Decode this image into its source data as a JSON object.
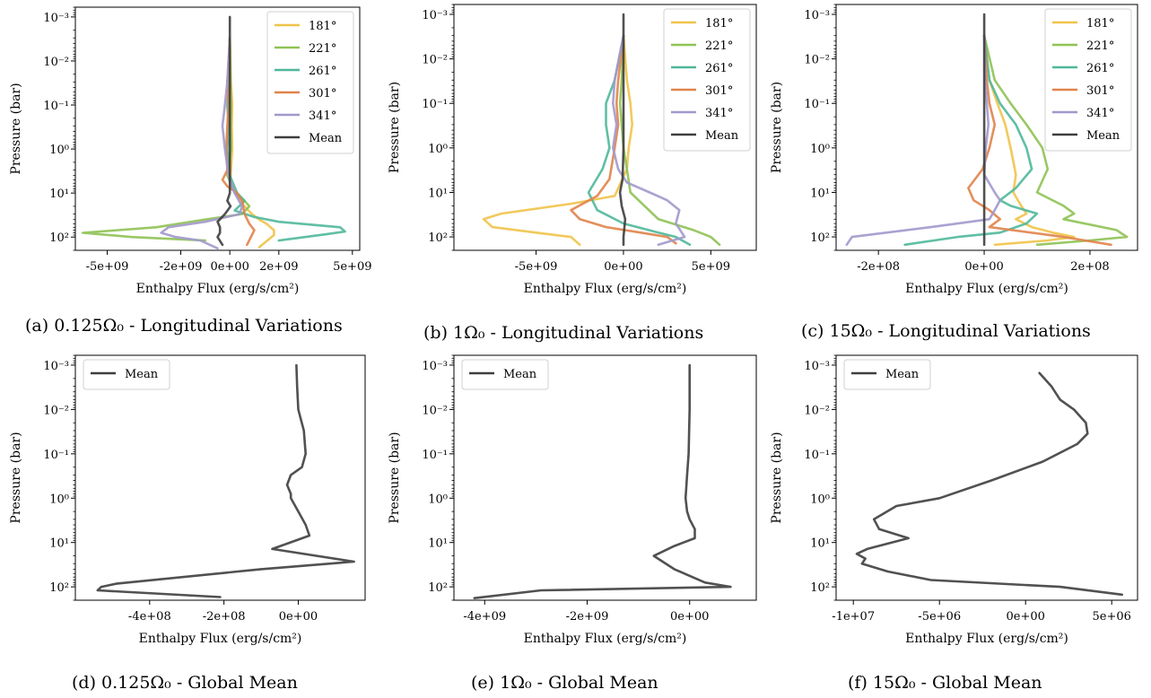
{
  "chart_data": [
    {
      "type": "line",
      "caption": "(a) 0.125Ω₀ - Longitudinal Variations",
      "xlabel": "Enthalpy Flux (erg/s/cm²)",
      "ylabel": "Pressure (bar)",
      "yscale": "log",
      "yinvert": true,
      "ylim": [
        0.0006,
        200
      ],
      "yticks": [
        0.001,
        0.01,
        0.1,
        1,
        10,
        100
      ],
      "ytick_labels": [
        "10⁻³",
        "10⁻²",
        "10⁻¹",
        "10⁰",
        "10¹",
        "10²"
      ],
      "xlim": [
        -6300000000.0,
        5300000000.0
      ],
      "xticks": [
        -5000000000.0,
        -2000000000.0,
        0,
        2000000000.0,
        5000000000.0
      ],
      "xtick_labels": [
        "-5e+09",
        "-2e+09",
        "0e+00",
        "2e+09",
        "5e+09"
      ],
      "legend": "top-right",
      "series": [
        {
          "name": "181°",
          "color": "#f0c34a",
          "x": [
            0,
            50000000.0,
            100000000.0,
            80000000.0,
            100000000.0,
            50000000.0,
            20000000.0,
            300000000.0,
            600000000.0,
            900000000.0,
            1200000000.0,
            1500000000.0,
            1800000000.0,
            1800000000.0,
            1200000000.0
          ],
          "y": [
            0.003,
            0.03,
            0.1,
            0.3,
            1,
            3,
            6,
            12,
            20,
            30,
            40,
            50,
            70,
            90,
            170
          ]
        },
        {
          "name": "221°",
          "color": "#8fc254",
          "x": [
            0,
            20000000.0,
            50000000.0,
            30000000.0,
            50000000.0,
            -100000000.0,
            200000000.0,
            600000000.0,
            800000000.0,
            500000000.0,
            -1000000000.0,
            -3000000000.0,
            -6000000000.0,
            -4000000000.0,
            -1000000000.0
          ],
          "y": [
            0.003,
            0.03,
            0.1,
            0.3,
            1,
            4,
            10,
            15,
            20,
            30,
            40,
            60,
            80,
            100,
            120
          ]
        },
        {
          "name": "261°",
          "color": "#4fb89a",
          "x": [
            0,
            -20000000.0,
            -100000000.0,
            -50000000.0,
            -100000000.0,
            0,
            300000000.0,
            600000000.0,
            200000000.0,
            1000000000.0,
            2000000000.0,
            4500000000.0,
            4700000000.0,
            4000000000.0,
            2000000000.0
          ],
          "y": [
            0.003,
            0.03,
            0.1,
            0.3,
            1,
            4,
            10,
            15,
            25,
            35,
            45,
            60,
            75,
            85,
            120
          ]
        },
        {
          "name": "301°",
          "color": "#e0834a",
          "x": [
            0,
            -100000000.0,
            -50000000.0,
            -100000000.0,
            -150000000.0,
            -100000000.0,
            -300000000.0,
            -100000000.0,
            300000000.0,
            500000000.0,
            600000000.0,
            800000000.0,
            1000000000.0,
            900000000.0,
            700000000.0
          ],
          "y": [
            0.003,
            0.03,
            0.1,
            0.3,
            1,
            3,
            5,
            7,
            10,
            15,
            30,
            50,
            70,
            90,
            150
          ]
        },
        {
          "name": "341°",
          "color": "#a298cc",
          "x": [
            0,
            -100000000.0,
            -200000000.0,
            -300000000.0,
            -200000000.0,
            -50000000.0,
            200000000.0,
            500000000.0,
            400000000.0,
            -1000000000.0,
            -2500000000.0,
            -2800000000.0,
            -2200000000.0,
            -1200000000.0,
            -500000000.0
          ],
          "y": [
            0.003,
            0.03,
            0.1,
            0.3,
            1,
            4,
            10,
            20,
            30,
            45,
            60,
            80,
            100,
            120,
            180
          ]
        },
        {
          "name": "Mean",
          "color": "#3e3e3e",
          "x": [
            0,
            0,
            0,
            0,
            0,
            0,
            0,
            -100000000.0,
            30000000.0,
            -200000000.0,
            -500000000.0,
            -400000000.0,
            -400000000.0,
            -500000000.0,
            -300000000.0
          ],
          "y": [
            0.001,
            0.01,
            0.1,
            1,
            3,
            6,
            10,
            15,
            20,
            30,
            45,
            60,
            80,
            100,
            150
          ]
        }
      ]
    },
    {
      "type": "line",
      "caption": "(b) 1Ω₀ - Longitudinal Variations",
      "xlabel": "Enthalpy Flux (erg/s/cm²)",
      "ylabel": "Pressure (bar)",
      "yscale": "log",
      "yinvert": true,
      "ylim": [
        0.0006,
        200
      ],
      "yticks": [
        0.001,
        0.01,
        0.1,
        1,
        10,
        100
      ],
      "ytick_labels": [
        "10⁻³",
        "10⁻²",
        "10⁻¹",
        "10⁰",
        "10¹",
        "10²"
      ],
      "xlim": [
        -9700000000.0,
        7600000000.0
      ],
      "xticks": [
        -5000000000.0,
        0,
        5000000000.0
      ],
      "xtick_labels": [
        "-5e+09",
        "0e+00",
        "5e+09"
      ],
      "legend": "top-right",
      "series": [
        {
          "name": "181°",
          "color": "#f0c34a",
          "x": [
            0,
            200000000.0,
            400000000.0,
            500000000.0,
            300000000.0,
            200000000.0,
            -500000000.0,
            -3000000000.0,
            -7000000000.0,
            -8000000000.0,
            -7500000000.0,
            -5000000000.0,
            -3000000000.0,
            -2500000000.0
          ],
          "y": [
            0.003,
            0.03,
            0.1,
            0.3,
            1,
            3,
            12,
            18,
            30,
            40,
            60,
            80,
            100,
            150
          ]
        },
        {
          "name": "221°",
          "color": "#8fc254",
          "x": [
            0,
            -100000000.0,
            -200000000.0,
            -100000000.0,
            0,
            200000000.0,
            400000000.0,
            2000000000.0,
            4000000000.0,
            5000000000.0,
            5500000000.0
          ],
          "y": [
            0.003,
            0.03,
            0.1,
            0.3,
            1,
            3,
            10,
            40,
            70,
            100,
            150
          ]
        },
        {
          "name": "261°",
          "color": "#4fb89a",
          "x": [
            0,
            -500000000.0,
            -1000000000.0,
            -1000000000.0,
            -800000000.0,
            -1200000000.0,
            -2000000000.0,
            -1500000000.0,
            0,
            2000000000.0,
            3000000000.0,
            3800000000.0
          ],
          "y": [
            0.003,
            0.03,
            0.1,
            0.3,
            1,
            3,
            10,
            25,
            50,
            80,
            100,
            150
          ]
        },
        {
          "name": "301°",
          "color": "#e0834a",
          "x": [
            0,
            -300000000.0,
            -400000000.0,
            -300000000.0,
            -500000000.0,
            -800000000.0,
            -1500000000.0,
            -3000000000.0,
            -2500000000.0,
            -1000000000.0,
            1000000000.0,
            2500000000.0,
            3000000000.0
          ],
          "y": [
            0.003,
            0.03,
            0.1,
            0.3,
            1,
            5,
            12,
            25,
            40,
            60,
            80,
            100,
            140
          ]
        },
        {
          "name": "341°",
          "color": "#a298cc",
          "x": [
            0,
            -500000000.0,
            -600000000.0,
            -400000000.0,
            -600000000.0,
            -300000000.0,
            200000000.0,
            1500000000.0,
            2500000000.0,
            3200000000.0,
            3000000000.0,
            3500000000.0,
            2000000000.0
          ],
          "y": [
            0.003,
            0.03,
            0.1,
            0.3,
            1,
            3,
            6,
            10,
            15,
            25,
            50,
            100,
            150
          ]
        },
        {
          "name": "Mean",
          "color": "#3e3e3e",
          "x": [
            0,
            0,
            0,
            0,
            -50000000.0,
            -200000000.0,
            -100000000.0,
            100000000.0,
            0,
            0
          ],
          "y": [
            0.001,
            0.01,
            0.1,
            1,
            5,
            10,
            20,
            40,
            100,
            150
          ]
        }
      ]
    },
    {
      "type": "line",
      "caption": "(c) 15Ω₀ - Longitudinal Variations",
      "xlabel": "Enthalpy Flux (erg/s/cm²)",
      "ylabel": "Pressure (bar)",
      "yscale": "log",
      "yinvert": true,
      "ylim": [
        0.0006,
        200
      ],
      "yticks": [
        0.001,
        0.01,
        0.1,
        1,
        10,
        100
      ],
      "ytick_labels": [
        "10⁻³",
        "10⁻²",
        "10⁻¹",
        "10⁰",
        "10¹",
        "10²"
      ],
      "xlim": [
        -280000000.0,
        290000000.0
      ],
      "xticks": [
        -200000000.0,
        0,
        200000000.0
      ],
      "xtick_labels": [
        "-2e+08",
        "0e+00",
        "2e+08"
      ],
      "legend": "top-right",
      "series": [
        {
          "name": "181°",
          "color": "#f0c34a",
          "x": [
            0,
            10000000.0,
            25000000.0,
            40000000.0,
            50000000.0,
            60000000.0,
            55000000.0,
            70000000.0,
            80000000.0,
            60000000.0,
            90000000.0,
            130000000.0,
            170000000.0,
            120000000.0,
            20000000.0
          ],
          "y": [
            0.003,
            0.03,
            0.1,
            0.3,
            1,
            4,
            10,
            20,
            30,
            40,
            60,
            80,
            100,
            120,
            150
          ]
        },
        {
          "name": "221°",
          "color": "#8fc254",
          "x": [
            0,
            20000000.0,
            50000000.0,
            80000000.0,
            110000000.0,
            120000000.0,
            100000000.0,
            150000000.0,
            170000000.0,
            150000000.0,
            250000000.0,
            270000000.0,
            200000000.0,
            100000000.0
          ],
          "y": [
            0.003,
            0.03,
            0.1,
            0.3,
            1,
            3,
            10,
            20,
            30,
            40,
            70,
            100,
            120,
            150
          ]
        },
        {
          "name": "261°",
          "color": "#4fb89a",
          "x": [
            0,
            10000000.0,
            30000000.0,
            60000000.0,
            80000000.0,
            90000000.0,
            60000000.0,
            30000000.0,
            50000000.0,
            100000000.0,
            80000000.0,
            30000000.0,
            -50000000.0,
            -150000000.0
          ],
          "y": [
            0.003,
            0.03,
            0.1,
            0.3,
            1,
            3,
            8,
            15,
            20,
            30,
            50,
            80,
            100,
            150
          ]
        },
        {
          "name": "301°",
          "color": "#e0834a",
          "x": [
            0,
            5000000.0,
            10000000.0,
            20000000.0,
            10000000.0,
            -3000000.0,
            -30000000.0,
            -20000000.0,
            10000000.0,
            30000000.0,
            10000000.0,
            150000000.0,
            240000000.0
          ],
          "y": [
            0.003,
            0.03,
            0.1,
            0.3,
            1,
            3,
            8,
            15,
            25,
            40,
            60,
            100,
            150
          ]
        },
        {
          "name": "341°",
          "color": "#a298cc",
          "x": [
            0,
            2000000.0,
            5000000.0,
            8000000.0,
            3000000.0,
            0,
            20000000.0,
            30000000.0,
            20000000.0,
            10000000.0,
            -100000000.0,
            -250000000.0,
            -260000000.0
          ],
          "y": [
            0.003,
            0.03,
            0.1,
            0.3,
            1,
            4,
            10,
            15,
            25,
            40,
            60,
            100,
            150
          ]
        },
        {
          "name": "Mean",
          "color": "#3e3e3e",
          "x": [
            0,
            0,
            0,
            0,
            0,
            0,
            0,
            0
          ],
          "y": [
            0.001,
            0.01,
            0.1,
            1,
            10,
            30,
            100,
            150
          ]
        }
      ]
    },
    {
      "type": "line",
      "caption": "(d) 0.125Ω₀ - Global Mean",
      "xlabel": "Enthalpy Flux (erg/s/cm²)",
      "ylabel": "Pressure (bar)",
      "yscale": "log",
      "yinvert": true,
      "ylim": [
        0.0006,
        200
      ],
      "yticks": [
        0.001,
        0.01,
        0.1,
        1,
        10,
        100
      ],
      "ytick_labels": [
        "10⁻³",
        "10⁻²",
        "10⁻¹",
        "10⁰",
        "10¹",
        "10²"
      ],
      "xlim": [
        -600000000.0,
        180000000.0
      ],
      "xticks": [
        -400000000.0,
        -200000000.0,
        0
      ],
      "xtick_labels": [
        "-4e+08",
        "-2e+08",
        "0e+00"
      ],
      "legend": "top-left",
      "series": [
        {
          "name": "Mean",
          "color": "#3e3e3e",
          "x": [
            -5000000.0,
            -3000000.0,
            0,
            15000000.0,
            20000000.0,
            10000000.0,
            -20000000.0,
            -30000000.0,
            -20000000.0,
            -20000000.0,
            0,
            20000000.0,
            30000000.0,
            -70000000.0,
            150000000.0,
            -100000000.0,
            -490000000.0,
            -530000000.0,
            -540000000.0,
            -210000000.0
          ],
          "y": [
            0.001,
            0.003,
            0.01,
            0.03,
            0.1,
            0.2,
            0.3,
            0.5,
            0.8,
            1.0,
            2,
            4,
            7,
            14,
            27,
            40,
            85,
            100,
            120,
            170
          ]
        }
      ]
    },
    {
      "type": "line",
      "caption": "(e) 1Ω₀ - Global Mean",
      "xlabel": "Enthalpy Flux (erg/s/cm²)",
      "ylabel": "Pressure (bar)",
      "yscale": "log",
      "yinvert": true,
      "ylim": [
        0.0006,
        200
      ],
      "yticks": [
        0.001,
        0.01,
        0.1,
        1,
        10,
        100
      ],
      "ytick_labels": [
        "10⁻³",
        "10⁻²",
        "10⁻¹",
        "10⁰",
        "10¹",
        "10²"
      ],
      "xlim": [
        -4600000000.0,
        1300000000.0
      ],
      "xticks": [
        -4000000000.0,
        -2000000000.0,
        0
      ],
      "xtick_labels": [
        "-4e+09",
        "-2e+09",
        "0e+00"
      ],
      "legend": "top-left",
      "series": [
        {
          "name": "Mean",
          "color": "#3e3e3e",
          "x": [
            0,
            0,
            -20000000.0,
            -50000000.0,
            -80000000.0,
            -50000000.0,
            0,
            100000000.0,
            100000000.0,
            -300000000.0,
            -700000000.0,
            -300000000.0,
            300000000.0,
            800000000.0,
            -2900000000.0,
            -4200000000.0
          ],
          "y": [
            0.001,
            0.01,
            0.1,
            0.3,
            1,
            2,
            3,
            5,
            8,
            12,
            20,
            40,
            80,
            100,
            120,
            180
          ]
        }
      ]
    },
    {
      "type": "line",
      "caption": "(f) 15Ω₀ - Global Mean",
      "xlabel": "Enthalpy Flux (erg/s/cm²)",
      "ylabel": "Pressure (bar)",
      "yscale": "log",
      "yinvert": true,
      "ylim": [
        0.0006,
        200
      ],
      "yticks": [
        0.001,
        0.01,
        0.1,
        1,
        10,
        100
      ],
      "ytick_labels": [
        "10⁻³",
        "10⁻²",
        "10⁻¹",
        "10⁰",
        "10¹",
        "10²"
      ],
      "xlim": [
        -11000000.0,
        6500000.0
      ],
      "xticks": [
        -10000000.0,
        -5000000.0,
        0,
        5000000.0
      ],
      "xtick_labels": [
        "-1e+07",
        "-5e+06",
        "0e+00",
        "5e+06"
      ],
      "legend": "top-left",
      "series": [
        {
          "name": "Mean",
          "color": "#3e3e3e",
          "x": [
            800000.0,
            1500000.0,
            2000000.0,
            2800000.0,
            3500000.0,
            3600000.0,
            3000000.0,
            1000000.0,
            -2000000.0,
            -5000000.0,
            -7500000.0,
            -8800000.0,
            -8500000.0,
            -6800000.0,
            -9200000.0,
            -9800000.0,
            -9300000.0,
            -9500000.0,
            -8000000.0,
            -5500000.0,
            2000000.0,
            5600000.0
          ],
          "y": [
            0.0015,
            0.003,
            0.006,
            0.01,
            0.02,
            0.035,
            0.06,
            0.15,
            0.4,
            1.0,
            1.5,
            3,
            5,
            8,
            14,
            18,
            23,
            30,
            45,
            70,
            100,
            150
          ]
        }
      ]
    }
  ]
}
